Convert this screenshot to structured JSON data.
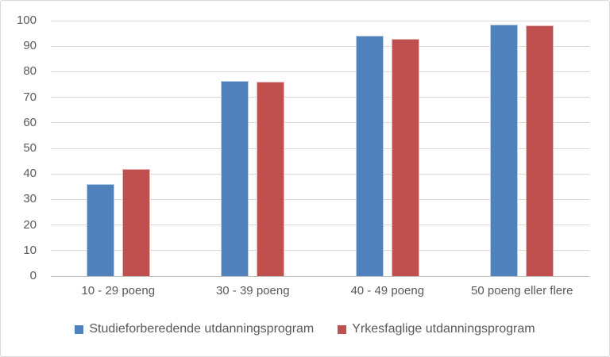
{
  "chart_data": {
    "type": "bar",
    "title": "",
    "xlabel": "",
    "ylabel": "",
    "categories": [
      "10 - 29 poeng",
      "30 - 39 poeng",
      "40 - 49 poeng",
      "50 poeng eller flere"
    ],
    "series": [
      {
        "name": "Studieforberedende utdanningsprogram",
        "color": "#4F81BD",
        "border_color": "#B9CDE5",
        "values": [
          36,
          76.5,
          94,
          93.9
        ]
      },
      {
        "name": "Yrkesfaglige utdanningsprogram",
        "color": "#C0504D",
        "border_color": "#E6B9B8",
        "values": [
          42,
          76,
          93,
          98
        ]
      }
    ],
    "series_values_note": "values read from gridlines",
    "ylim": [
      0,
      100
    ],
    "ytick_step": 10,
    "yticks": [
      0,
      10,
      20,
      30,
      40,
      50,
      60,
      70,
      80,
      90,
      100
    ],
    "grid": true,
    "legend_position": "bottom",
    "colors": {
      "gridline": "#D9D9D9",
      "axis_line": "#BFBFBF",
      "text": "#595959",
      "background": "#FFFFFF",
      "frame_border": "#D9D9D9"
    }
  }
}
